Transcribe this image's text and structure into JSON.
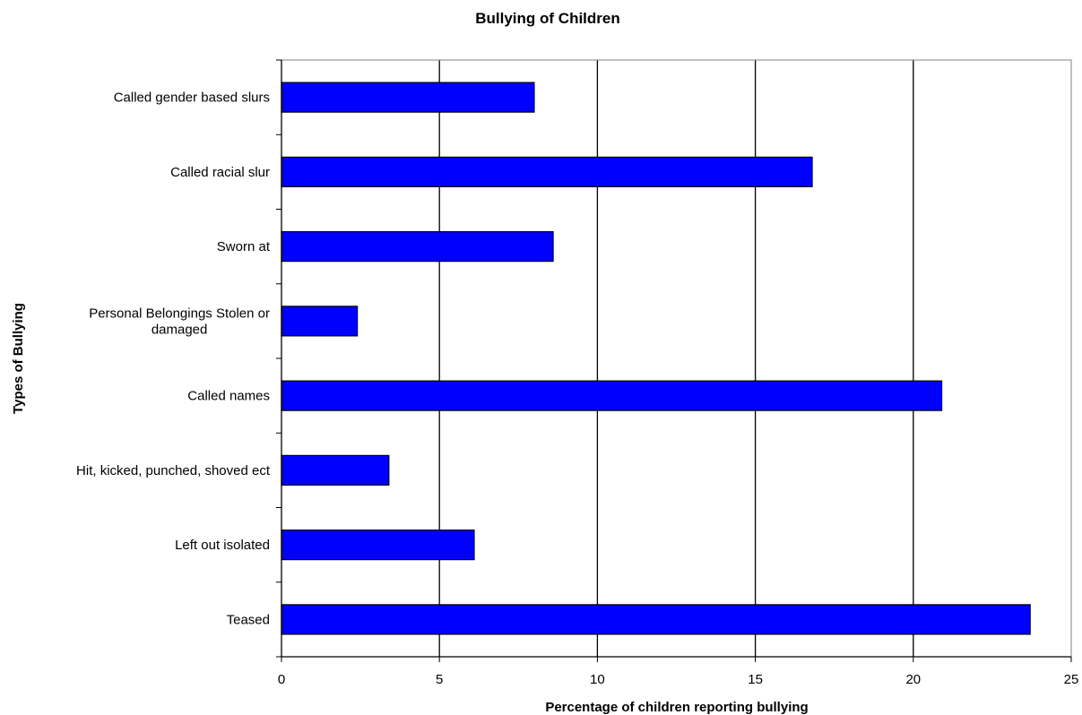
{
  "chart_data": {
    "type": "bar",
    "orientation": "horizontal",
    "title": "Bullying of Children",
    "xlabel": "Percentage of children reporting bullying",
    "ylabel": "Types of Bullying",
    "categories": [
      "Called gender based slurs",
      "Called racial slur",
      "Sworn at",
      "Personal Belongings Stolen or damaged",
      "Called names",
      "Hit, kicked, punched, shoved ect",
      "Left out isolated",
      "Teased"
    ],
    "category_label_lines": [
      [
        "Called gender based slurs"
      ],
      [
        "Called racial slur"
      ],
      [
        "Sworn at"
      ],
      [
        "Personal Belongings Stolen or",
        "damaged"
      ],
      [
        "Called names"
      ],
      [
        "Hit, kicked, punched, shoved ect"
      ],
      [
        "Left out isolated"
      ],
      [
        "Teased"
      ]
    ],
    "values": [
      8.0,
      16.8,
      8.6,
      2.4,
      20.9,
      3.4,
      6.1,
      23.7
    ],
    "xlim": [
      0,
      25
    ],
    "xticks": [
      "0",
      "5",
      "10",
      "15",
      "20",
      "25"
    ],
    "grid": "vertical major gridlines",
    "legend": "none",
    "bar_color": "#0000FF",
    "bar_outline_color": "#000000",
    "gridline_color": "#000000",
    "plot_border_color": "#808080"
  }
}
